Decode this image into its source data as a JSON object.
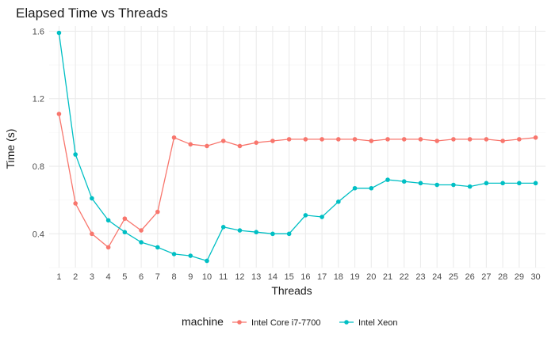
{
  "chart_data": {
    "type": "line",
    "title": "Elapsed Time vs Threads",
    "xlabel": "Threads",
    "ylabel": "Time (s)",
    "x": [
      1,
      2,
      3,
      4,
      5,
      6,
      7,
      8,
      9,
      10,
      11,
      12,
      13,
      14,
      15,
      16,
      17,
      18,
      19,
      20,
      21,
      22,
      23,
      24,
      25,
      26,
      27,
      28,
      29,
      30
    ],
    "xlim": [
      0.4,
      30.6
    ],
    "ylim": [
      0.2,
      1.63
    ],
    "yticks": [
      0.4,
      0.8,
      1.2,
      1.6
    ],
    "ytick_labels": [
      "0.4",
      "0.8",
      "1.2",
      "1.6"
    ],
    "grid": true,
    "legend": {
      "title": "machine",
      "position": "bottom"
    },
    "series": [
      {
        "name": "Intel Core i7-7700",
        "color": "#F8766D",
        "values": [
          1.11,
          0.58,
          0.4,
          0.32,
          0.49,
          0.42,
          0.53,
          0.97,
          0.93,
          0.92,
          0.95,
          0.92,
          0.94,
          0.95,
          0.96,
          0.96,
          0.96,
          0.96,
          0.96,
          0.95,
          0.96,
          0.96,
          0.96,
          0.95,
          0.96,
          0.96,
          0.96,
          0.95,
          0.96,
          0.97
        ]
      },
      {
        "name": "Intel Xeon",
        "color": "#00BFC4",
        "values": [
          1.59,
          0.87,
          0.61,
          0.48,
          0.41,
          0.35,
          0.32,
          0.28,
          0.27,
          0.24,
          0.44,
          0.42,
          0.41,
          0.4,
          0.4,
          0.51,
          0.5,
          0.59,
          0.67,
          0.67,
          0.72,
          0.71,
          0.7,
          0.69,
          0.69,
          0.68,
          0.7,
          0.7,
          0.7,
          0.7
        ]
      }
    ]
  }
}
